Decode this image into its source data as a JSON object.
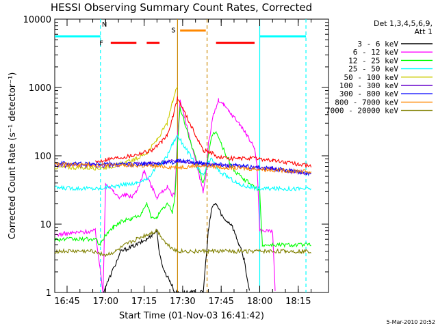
{
  "chart_data": {
    "type": "line",
    "title": "HESSI Observing Summary Count Rates, Corrected",
    "xlabel": "Start Time (01-Nov-03 16:41:42)",
    "ylabel": "Corrected Count Rate (s⁻¹ detector⁻¹)",
    "yscale": "log",
    "ylim": [
      1,
      10000
    ],
    "xlim_minutes": [
      40.0,
      100.0
    ],
    "x_ticks": [
      {
        "m": 45,
        "label": "16:45"
      },
      {
        "m": 60,
        "label": "17:00"
      },
      {
        "m": 75,
        "label": "17:15"
      },
      {
        "m": 90,
        "label": "17:30"
      },
      {
        "m": 105,
        "label": "17:45"
      },
      {
        "m": 120,
        "label": "18:00"
      },
      {
        "m": 135,
        "label": "18:15"
      }
    ],
    "y_ticks": [
      {
        "v": 1,
        "label": "1"
      },
      {
        "v": 10,
        "label": "10"
      },
      {
        "v": 100,
        "label": "100"
      },
      {
        "v": 1000,
        "label": "1000"
      },
      {
        "v": 10000,
        "label": "10000"
      }
    ],
    "legend_header": [
      "Det 1,3,4,5,6,9,",
      "Att 1"
    ],
    "legend_position": "top-right, outside plot",
    "series": [
      {
        "name": "3 - 6 keV",
        "color": "#000000",
        "points": [
          [
            59,
            1
          ],
          [
            66,
            4
          ],
          [
            72,
            5
          ],
          [
            76,
            6
          ],
          [
            78,
            7
          ],
          [
            80,
            8
          ],
          [
            81,
            3.5
          ],
          [
            83,
            2
          ],
          [
            85,
            1.5
          ],
          [
            87,
            1
          ],
          [
            98,
            1
          ],
          [
            100,
            8
          ],
          [
            101.5,
            18
          ],
          [
            103,
            20
          ],
          [
            106,
            12
          ],
          [
            109,
            10
          ],
          [
            112,
            5
          ],
          [
            114,
            3
          ],
          [
            116,
            1
          ]
        ]
      },
      {
        "name": "6 - 12 keV",
        "color": "#ff00ff",
        "points": [
          [
            40,
            7
          ],
          [
            56,
            8
          ],
          [
            59,
            1
          ],
          [
            60,
            40
          ],
          [
            63,
            30
          ],
          [
            65,
            25
          ],
          [
            68,
            27
          ],
          [
            70,
            25
          ],
          [
            72,
            30
          ],
          [
            75,
            60
          ],
          [
            78,
            35
          ],
          [
            80,
            25
          ],
          [
            82,
            30
          ],
          [
            84,
            35
          ],
          [
            86,
            25
          ],
          [
            87,
            30
          ],
          [
            88,
            200
          ],
          [
            89,
            650
          ],
          [
            98,
            30
          ],
          [
            99,
            50
          ],
          [
            100,
            150
          ],
          [
            102,
            400
          ],
          [
            104,
            650
          ],
          [
            106,
            550
          ],
          [
            108,
            450
          ],
          [
            112,
            300
          ],
          [
            115,
            200
          ],
          [
            118,
            130
          ],
          [
            119,
            70
          ],
          [
            120,
            8
          ],
          [
            125,
            8
          ],
          [
            126,
            1
          ]
        ]
      },
      {
        "name": "12 - 25 keV",
        "color": "#00ff00",
        "points": [
          [
            40,
            6
          ],
          [
            56,
            6
          ],
          [
            58,
            5
          ],
          [
            60,
            7
          ],
          [
            63,
            9
          ],
          [
            66,
            11
          ],
          [
            70,
            12
          ],
          [
            74,
            14
          ],
          [
            76,
            20
          ],
          [
            78,
            12
          ],
          [
            80,
            13
          ],
          [
            82,
            16
          ],
          [
            84,
            20
          ],
          [
            86,
            15
          ],
          [
            87,
            25
          ],
          [
            88,
            150
          ],
          [
            89,
            500
          ],
          [
            98,
            40
          ],
          [
            100,
            100
          ],
          [
            101.5,
            200
          ],
          [
            103,
            230
          ],
          [
            105,
            150
          ],
          [
            107,
            100
          ],
          [
            110,
            60
          ],
          [
            114,
            45
          ],
          [
            118,
            35
          ],
          [
            120,
            30
          ],
          [
            121,
            5
          ],
          [
            140,
            5
          ]
        ]
      },
      {
        "name": "25 - 50 keV",
        "color": "#00ffff",
        "points": [
          [
            40,
            34
          ],
          [
            58,
            33
          ],
          [
            60,
            35
          ],
          [
            64,
            36
          ],
          [
            68,
            38
          ],
          [
            72,
            40
          ],
          [
            76,
            45
          ],
          [
            80,
            70
          ],
          [
            82,
            80
          ],
          [
            84,
            100
          ],
          [
            86,
            150
          ],
          [
            88,
            200
          ],
          [
            98,
            50
          ],
          [
            100,
            80
          ],
          [
            101.5,
            90
          ],
          [
            104,
            60
          ],
          [
            108,
            48
          ],
          [
            112,
            38
          ],
          [
            116,
            35
          ],
          [
            120,
            33
          ],
          [
            140,
            33
          ]
        ]
      },
      {
        "name": "50 - 100 keV",
        "color": "#cccc00",
        "points": [
          [
            40,
            68
          ],
          [
            58,
            66
          ],
          [
            60,
            68
          ],
          [
            64,
            72
          ],
          [
            68,
            80
          ],
          [
            72,
            90
          ],
          [
            76,
            110
          ],
          [
            80,
            170
          ],
          [
            84,
            300
          ],
          [
            86,
            600
          ],
          [
            88,
            1100
          ]
        ]
      },
      {
        "name": "100 - 300 keV",
        "color": "#6600cc",
        "points": [
          [
            40,
            72
          ],
          [
            60,
            72
          ],
          [
            70,
            75
          ],
          [
            80,
            78
          ],
          [
            88,
            85
          ],
          [
            98,
            75
          ],
          [
            105,
            72
          ],
          [
            115,
            68
          ],
          [
            125,
            64
          ],
          [
            135,
            58
          ],
          [
            140,
            55
          ]
        ]
      },
      {
        "name": "300 - 800 keV",
        "color": "#0000ff",
        "points": [
          [
            40,
            78
          ],
          [
            60,
            76
          ],
          [
            70,
            75
          ],
          [
            80,
            77
          ],
          [
            86,
            80
          ],
          [
            88,
            85
          ],
          [
            98,
            78
          ],
          [
            105,
            75
          ],
          [
            115,
            70
          ],
          [
            125,
            65
          ],
          [
            135,
            58
          ],
          [
            140,
            55
          ]
        ]
      },
      {
        "name": "800 - 7000 keV",
        "color": "#ff8800",
        "points": [
          [
            40,
            75
          ],
          [
            60,
            73
          ],
          [
            70,
            72
          ],
          [
            80,
            70
          ],
          [
            88,
            68
          ],
          [
            98,
            72
          ],
          [
            105,
            68
          ],
          [
            115,
            65
          ],
          [
            125,
            62
          ],
          [
            135,
            60
          ],
          [
            140,
            58
          ]
        ]
      },
      {
        "name": "7000 - 20000 keV",
        "color": "#808000",
        "points": [
          [
            40,
            4
          ],
          [
            56,
            4
          ],
          [
            60,
            3.5
          ],
          [
            64,
            4
          ],
          [
            68,
            5
          ],
          [
            72,
            6
          ],
          [
            76,
            7
          ],
          [
            80,
            8
          ],
          [
            84,
            5
          ],
          [
            88,
            4
          ],
          [
            100,
            4
          ],
          [
            110,
            4
          ],
          [
            120,
            4
          ],
          [
            130,
            4
          ],
          [
            140,
            4
          ]
        ]
      }
    ],
    "red_trace": {
      "color": "#ff0000",
      "points": [
        [
          56,
          80
        ],
        [
          60,
          88
        ],
        [
          66,
          95
        ],
        [
          70,
          100
        ],
        [
          74,
          110
        ],
        [
          78,
          120
        ],
        [
          82,
          160
        ],
        [
          84,
          200
        ],
        [
          86,
          350
        ],
        [
          88,
          700
        ],
        [
          98,
          120
        ],
        [
          101.5,
          110
        ],
        [
          104,
          95
        ],
        [
          108,
          92
        ],
        [
          112,
          90
        ],
        [
          116,
          92
        ],
        [
          120,
          90
        ],
        [
          125,
          85
        ],
        [
          130,
          80
        ],
        [
          135,
          75
        ],
        [
          140,
          70
        ]
      ]
    },
    "flag_markers": [
      {
        "label": "N",
        "color": "#00ffff"
      },
      {
        "label": "F",
        "color": "#ff0000"
      },
      {
        "label": "S",
        "color": "#ff8800"
      }
    ],
    "flag_bars": [
      {
        "color": "#00ffff",
        "from": 40,
        "to": 58,
        "level": 5600
      },
      {
        "color": "#00ffff",
        "from": 120,
        "to": 138,
        "level": 5600
      },
      {
        "color": "#ff0000",
        "from": 62,
        "to": 72,
        "level": 4500
      },
      {
        "color": "#ff0000",
        "from": 76,
        "to": 81,
        "level": 4500
      },
      {
        "color": "#ff0000",
        "from": 103,
        "to": 118,
        "level": 4500
      },
      {
        "color": "#ff8800",
        "from": 89,
        "to": 99,
        "level": 6800
      }
    ],
    "vlines": [
      {
        "m": 40,
        "color": "#00ffff",
        "style": "solid"
      },
      {
        "m": 58,
        "color": "#00ffff",
        "style": "dashed"
      },
      {
        "m": 88,
        "color": "#cc8800",
        "style": "solid"
      },
      {
        "m": 99.5,
        "color": "#cc8800",
        "style": "dashed"
      },
      {
        "m": 120,
        "color": "#00ffff",
        "style": "solid"
      },
      {
        "m": 138,
        "color": "#00ffff",
        "style": "dashed"
      }
    ],
    "footer": "5-Mar-2010 20:52"
  }
}
